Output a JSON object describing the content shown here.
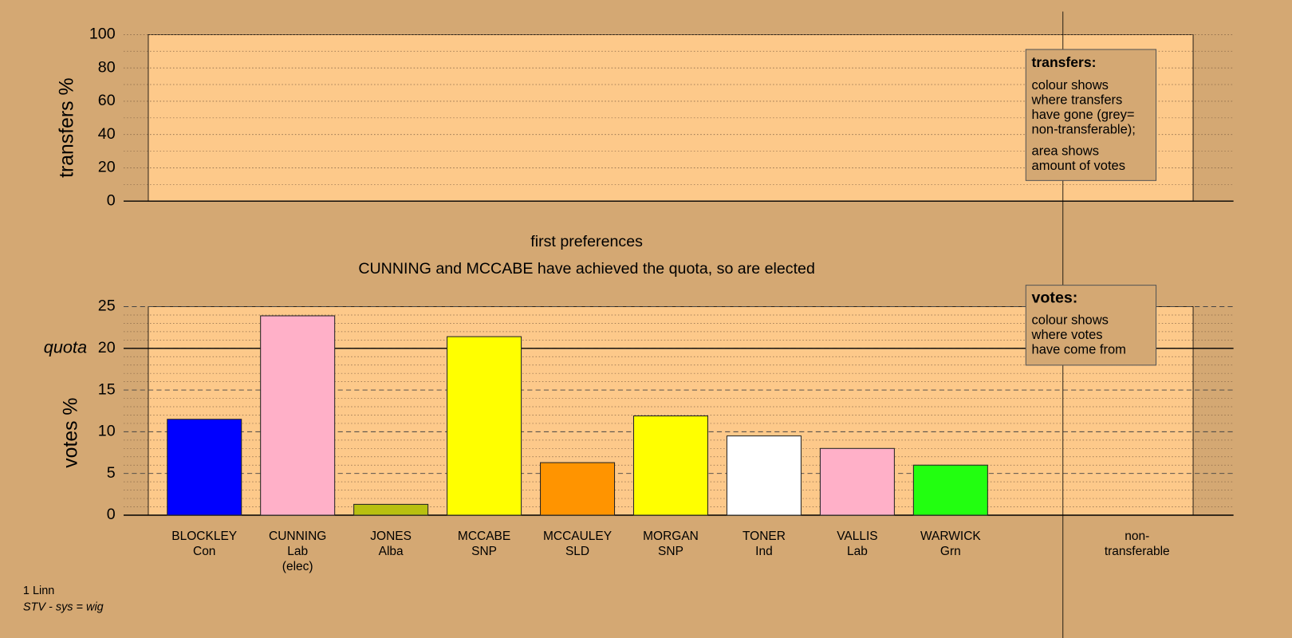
{
  "chart_data": [
    {
      "type": "bar",
      "y_label": "transfers %",
      "ylim": [
        0,
        100
      ],
      "yticks": [
        0,
        20,
        40,
        60,
        80,
        100
      ],
      "grid": true,
      "note": {
        "title": "transfers:",
        "paragraphs": [
          [
            "colour shows",
            "where transfers",
            "have gone (grey=",
            "non-transferable);"
          ],
          [
            "area shows",
            "amount of votes"
          ]
        ]
      }
    },
    {
      "type": "bar",
      "title": "first preferences",
      "subtitle": "CUNNING and MCCABE have achieved the quota, so are elected",
      "y_label": "votes %",
      "ylim": [
        0,
        25
      ],
      "yticks": [
        0,
        5,
        10,
        15,
        20,
        25
      ],
      "grid": true,
      "quota": 20,
      "quota_label": "quota",
      "categories": [
        [
          "BLOCKLEY",
          "Con"
        ],
        [
          "CUNNING",
          "Lab",
          "(elec)"
        ],
        [
          "JONES",
          "Alba"
        ],
        [
          "MCCABE",
          "SNP"
        ],
        [
          "MCCAULEY",
          "SLD"
        ],
        [
          "MORGAN",
          "SNP"
        ],
        [
          "TONER",
          "Ind"
        ],
        [
          "VALLIS",
          "Lab"
        ],
        [
          "WARWICK",
          "Grn"
        ],
        [
          "non-",
          "transferable"
        ]
      ],
      "values": [
        11.5,
        23.9,
        1.3,
        21.4,
        6.3,
        11.9,
        9.5,
        8.0,
        6.0,
        null
      ],
      "colors": [
        "#0000ff",
        "#ffb0c8",
        "#b8c010",
        "#ffff00",
        "#ff9400",
        "#ffff00",
        "#ffffff",
        "#ffb0c8",
        "#22ff10",
        null
      ],
      "note": {
        "title": "votes:",
        "paragraphs": [
          [
            "colour shows",
            "where votes",
            "have come from"
          ]
        ]
      }
    }
  ],
  "footer": {
    "lines": [
      "1 Linn",
      "STV - sys = wig"
    ]
  }
}
